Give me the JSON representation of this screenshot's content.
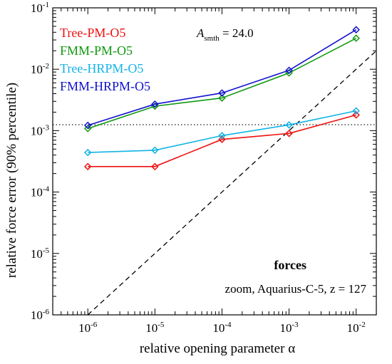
{
  "chart_data": {
    "type": "line",
    "x_scale": "log",
    "y_scale": "log",
    "xlim": [
      3e-07,
      0.02
    ],
    "ylim": [
      1e-06,
      0.1
    ],
    "xlabel": "relative opening parameter α",
    "ylabel": "relative force error (90% percentile)",
    "x_ticks": [
      {
        "value": 1e-06,
        "base": "10",
        "exp": "-6"
      },
      {
        "value": 1e-05,
        "base": "10",
        "exp": "-5"
      },
      {
        "value": 0.0001,
        "base": "10",
        "exp": "-4"
      },
      {
        "value": 0.001,
        "base": "10",
        "exp": "-3"
      },
      {
        "value": 0.01,
        "base": "10",
        "exp": "-2"
      }
    ],
    "y_ticks": [
      {
        "value": 1e-06,
        "base": "10",
        "exp": "-6"
      },
      {
        "value": 1e-05,
        "base": "10",
        "exp": "-5"
      },
      {
        "value": 0.0001,
        "base": "10",
        "exp": "-4"
      },
      {
        "value": 0.001,
        "base": "10",
        "exp": "-3"
      },
      {
        "value": 0.01,
        "base": "10",
        "exp": "-2"
      },
      {
        "value": 0.1,
        "base": "10",
        "exp": "-1"
      }
    ],
    "x": [
      1e-06,
      1e-05,
      0.0001,
      0.001,
      0.01
    ],
    "series": [
      {
        "name": "Tree-PM-O5",
        "color": "#ee1111",
        "values": [
          0.00026,
          0.00026,
          0.00072,
          0.0009,
          0.0018
        ]
      },
      {
        "name": "FMM-PM-O5",
        "color": "#119911",
        "values": [
          0.00108,
          0.0025,
          0.0034,
          0.0087,
          0.032
        ]
      },
      {
        "name": "Tree-HRPM-O5",
        "color": "#11b4e6",
        "values": [
          0.00044,
          0.00048,
          0.00083,
          0.00124,
          0.0021
        ]
      },
      {
        "name": "FMM-HRPM-O5",
        "color": "#1111cc",
        "values": [
          0.00122,
          0.0027,
          0.0041,
          0.0096,
          0.044
        ]
      }
    ],
    "reference_lines": [
      {
        "kind": "horizontal",
        "style": "dotted",
        "y": 0.00125
      },
      {
        "kind": "diagonal",
        "style": "dashed",
        "points": [
          [
            1e-06,
            1e-06
          ],
          [
            0.02,
            0.02
          ]
        ]
      }
    ],
    "legend_placement": "top-left",
    "annotations": {
      "smoothing_symbol": "A",
      "smoothing_subscript": "smth",
      "smoothing_value": " = 24.0",
      "panel_label": "forces",
      "run_label": "zoom, Aquarius-C-5, z = 127"
    },
    "marker": "diamond",
    "grid": false
  }
}
